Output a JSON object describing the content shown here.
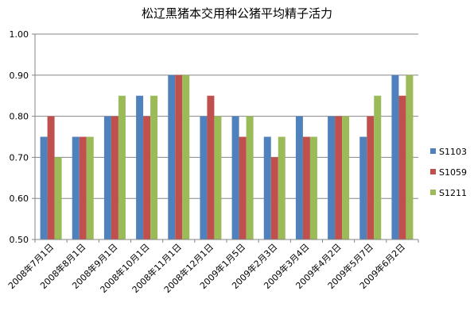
{
  "chart_data": {
    "type": "bar",
    "title": "松辽黑猪本交用种公猪平均精子活力",
    "xlabel": "",
    "ylabel": "",
    "ylim": [
      0.5,
      1.0
    ],
    "yticks": [
      "0.50",
      "0.60",
      "0.70",
      "0.80",
      "0.90",
      "1.00"
    ],
    "grid": true,
    "legend_position": "right",
    "categories": [
      "2008年7月1日",
      "2008年8月1日",
      "2008年9月1日",
      "2008年10月1日",
      "2008年11月1日",
      "2008年12月1日",
      "2009年1月5日",
      "2009年2月3日",
      "2009年3月4日",
      "2009年4月2日",
      "2009年5月7日",
      "2009年6月2日"
    ],
    "series": [
      {
        "name": "S1103",
        "color": "#4F81BD",
        "values": [
          0.75,
          0.75,
          0.8,
          0.85,
          0.9,
          0.8,
          0.8,
          0.75,
          0.8,
          0.8,
          0.75,
          0.9
        ]
      },
      {
        "name": "S1059",
        "color": "#C0504D",
        "values": [
          0.8,
          0.75,
          0.8,
          0.8,
          0.9,
          0.85,
          0.75,
          0.7,
          0.75,
          0.8,
          0.8,
          0.85
        ]
      },
      {
        "name": "S1211",
        "color": "#9BBB59",
        "values": [
          0.7,
          0.75,
          0.85,
          0.85,
          0.9,
          0.8,
          0.8,
          0.75,
          0.75,
          0.8,
          0.85,
          0.9
        ]
      }
    ]
  }
}
